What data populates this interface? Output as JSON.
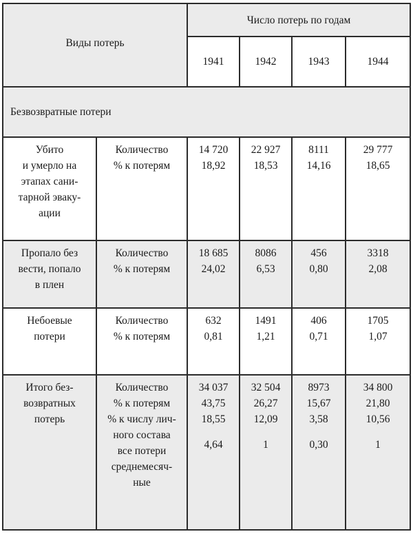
{
  "header": {
    "types_label": "Виды потерь",
    "group_label": "Число потерь по годам",
    "years": [
      "1941",
      "1942",
      "1943",
      "1944"
    ]
  },
  "section": {
    "label": "Безвозвратные потери"
  },
  "rows": [
    {
      "kind": [
        "Убито",
        "и умерло на",
        "этапах сани-",
        "тарной эваку-",
        "ации"
      ],
      "measures": [
        "Количество",
        "% к потерям"
      ],
      "values": [
        [
          "14 720",
          "18,92"
        ],
        [
          "22 927",
          "18,53"
        ],
        [
          "8111",
          "14,16"
        ],
        [
          "29 777",
          "18,65"
        ]
      ]
    },
    {
      "kind": [
        "Пропало без",
        "вести, попало",
        "в плен"
      ],
      "measures": [
        "Количество",
        "% к потерям"
      ],
      "values": [
        [
          "18 685",
          "24,02"
        ],
        [
          "8086",
          "6,53"
        ],
        [
          "456",
          "0,80"
        ],
        [
          "3318",
          "2,08"
        ]
      ]
    },
    {
      "kind": [
        "Небоевые",
        "потери"
      ],
      "measures": [
        "Количество",
        "% к потерям"
      ],
      "values": [
        [
          "632",
          "0,81"
        ],
        [
          "1491",
          "1,21"
        ],
        [
          "406",
          "0,71"
        ],
        [
          "1705",
          "1,07"
        ]
      ]
    },
    {
      "kind": [
        "Итого без-",
        "возвратных",
        "потерь"
      ],
      "measures": [
        "Количество",
        "% к потерям",
        "% к числу лич-",
        "ного состава",
        "все потери",
        "среднемесяч-",
        "ные"
      ],
      "values": [
        [
          "34 037",
          "43,75",
          "18,55",
          "4,64"
        ],
        [
          "32 504",
          "26,27",
          "12,09",
          "1"
        ],
        [
          "8973",
          "15,67",
          "3,58",
          "0,30"
        ],
        [
          "34 800",
          "21,80",
          "10,56",
          "1"
        ]
      ]
    }
  ]
}
